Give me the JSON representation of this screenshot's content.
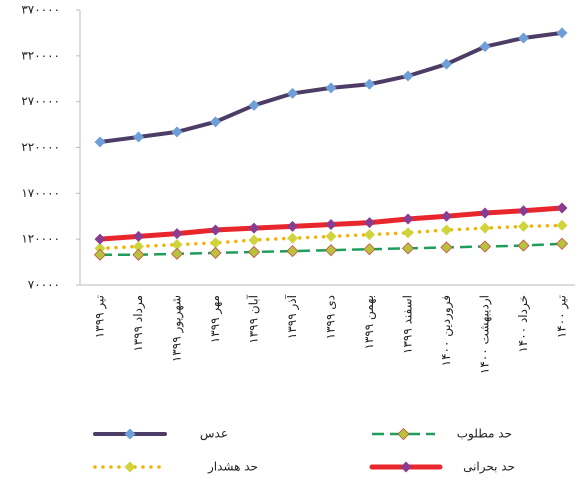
{
  "chart_data": {
    "type": "line",
    "categories": [
      "تیر ۱۳۹۹",
      "مرداد ۱۳۹۹",
      "شهریور ۱۳۹۹",
      "مهر ۱۳۹۹",
      "آبان ۱۳۹۹",
      "آذر ۱۳۹۹",
      "دی ۱۳۹۹",
      "بهمن ۱۳۹۹",
      "اسفند ۱۳۹۹",
      "فروردین ۱۴۰۰",
      "اردیبهشت ۱۴۰۰",
      "خرداد ۱۴۰۰",
      "تیر ۱۴۰۰"
    ],
    "series": [
      {
        "name": "عدس",
        "color": "#4d3d66",
        "marker_color": "#6f9fd8",
        "line_style": "solid",
        "values": [
          226000,
          231500,
          237000,
          248000,
          266000,
          279000,
          285000,
          289000,
          298000,
          311000,
          330000,
          339500,
          345000
        ]
      },
      {
        "name": "حد مطلوب",
        "color": "#1e9e5a",
        "marker_color": "#b8c23a",
        "line_style": "dashed",
        "values": [
          103000,
          103000,
          104000,
          105000,
          106000,
          107000,
          108000,
          109000,
          110000,
          111000,
          112000,
          113000,
          115000
        ]
      },
      {
        "name": "حد هشدار",
        "color": "#f0b400",
        "marker_color": "#cfd43c",
        "line_style": "dotted",
        "values": [
          110000,
          112000,
          114000,
          116000,
          119000,
          121000,
          123000,
          125000,
          127000,
          130000,
          132000,
          134000,
          135000
        ]
      },
      {
        "name": "حد بحرانی",
        "color": "#e8262b",
        "marker_color": "#8a3d8f",
        "line_style": "thick",
        "values": [
          120000,
          123000,
          126000,
          130000,
          132000,
          134000,
          136000,
          138000,
          142000,
          145000,
          148500,
          151000,
          154000
        ]
      }
    ],
    "ylim": [
      70000,
      370000
    ],
    "yticks": [
      {
        "value": 70000,
        "label": "۷۰۰۰۰"
      },
      {
        "value": 120000,
        "label": "۱۲۰۰۰۰"
      },
      {
        "value": 170000,
        "label": "۱۷۰۰۰۰"
      },
      {
        "value": 220000,
        "label": "۲۲۰۰۰۰"
      },
      {
        "value": 270000,
        "label": "۲۷۰۰۰۰"
      },
      {
        "value": 320000,
        "label": "۳۲۰۰۰۰"
      },
      {
        "value": 370000,
        "label": "۳۷۰۰۰۰"
      }
    ],
    "grid": false
  }
}
